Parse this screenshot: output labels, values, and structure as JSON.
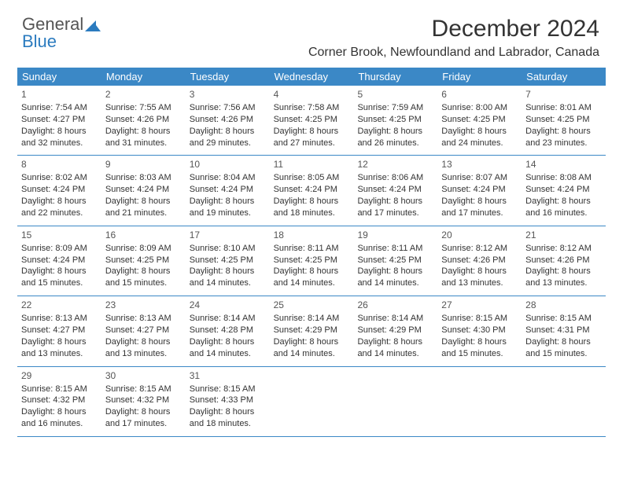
{
  "logo": {
    "part1": "General",
    "part2": "Blue"
  },
  "title": "December 2024",
  "subtitle": "Corner Brook, Newfoundland and Labrador, Canada",
  "colors": {
    "header_bg": "#3b88c6",
    "header_text": "#ffffff",
    "row_border": "#3b88c6",
    "logo_blue": "#2b7bbf",
    "text": "#333333",
    "bg": "#ffffff"
  },
  "day_headers": [
    "Sunday",
    "Monday",
    "Tuesday",
    "Wednesday",
    "Thursday",
    "Friday",
    "Saturday"
  ],
  "weeks": [
    [
      {
        "n": "1",
        "sr": "Sunrise: 7:54 AM",
        "ss": "Sunset: 4:27 PM",
        "d1": "Daylight: 8 hours",
        "d2": "and 32 minutes."
      },
      {
        "n": "2",
        "sr": "Sunrise: 7:55 AM",
        "ss": "Sunset: 4:26 PM",
        "d1": "Daylight: 8 hours",
        "d2": "and 31 minutes."
      },
      {
        "n": "3",
        "sr": "Sunrise: 7:56 AM",
        "ss": "Sunset: 4:26 PM",
        "d1": "Daylight: 8 hours",
        "d2": "and 29 minutes."
      },
      {
        "n": "4",
        "sr": "Sunrise: 7:58 AM",
        "ss": "Sunset: 4:25 PM",
        "d1": "Daylight: 8 hours",
        "d2": "and 27 minutes."
      },
      {
        "n": "5",
        "sr": "Sunrise: 7:59 AM",
        "ss": "Sunset: 4:25 PM",
        "d1": "Daylight: 8 hours",
        "d2": "and 26 minutes."
      },
      {
        "n": "6",
        "sr": "Sunrise: 8:00 AM",
        "ss": "Sunset: 4:25 PM",
        "d1": "Daylight: 8 hours",
        "d2": "and 24 minutes."
      },
      {
        "n": "7",
        "sr": "Sunrise: 8:01 AM",
        "ss": "Sunset: 4:25 PM",
        "d1": "Daylight: 8 hours",
        "d2": "and 23 minutes."
      }
    ],
    [
      {
        "n": "8",
        "sr": "Sunrise: 8:02 AM",
        "ss": "Sunset: 4:24 PM",
        "d1": "Daylight: 8 hours",
        "d2": "and 22 minutes."
      },
      {
        "n": "9",
        "sr": "Sunrise: 8:03 AM",
        "ss": "Sunset: 4:24 PM",
        "d1": "Daylight: 8 hours",
        "d2": "and 21 minutes."
      },
      {
        "n": "10",
        "sr": "Sunrise: 8:04 AM",
        "ss": "Sunset: 4:24 PM",
        "d1": "Daylight: 8 hours",
        "d2": "and 19 minutes."
      },
      {
        "n": "11",
        "sr": "Sunrise: 8:05 AM",
        "ss": "Sunset: 4:24 PM",
        "d1": "Daylight: 8 hours",
        "d2": "and 18 minutes."
      },
      {
        "n": "12",
        "sr": "Sunrise: 8:06 AM",
        "ss": "Sunset: 4:24 PM",
        "d1": "Daylight: 8 hours",
        "d2": "and 17 minutes."
      },
      {
        "n": "13",
        "sr": "Sunrise: 8:07 AM",
        "ss": "Sunset: 4:24 PM",
        "d1": "Daylight: 8 hours",
        "d2": "and 17 minutes."
      },
      {
        "n": "14",
        "sr": "Sunrise: 8:08 AM",
        "ss": "Sunset: 4:24 PM",
        "d1": "Daylight: 8 hours",
        "d2": "and 16 minutes."
      }
    ],
    [
      {
        "n": "15",
        "sr": "Sunrise: 8:09 AM",
        "ss": "Sunset: 4:24 PM",
        "d1": "Daylight: 8 hours",
        "d2": "and 15 minutes."
      },
      {
        "n": "16",
        "sr": "Sunrise: 8:09 AM",
        "ss": "Sunset: 4:25 PM",
        "d1": "Daylight: 8 hours",
        "d2": "and 15 minutes."
      },
      {
        "n": "17",
        "sr": "Sunrise: 8:10 AM",
        "ss": "Sunset: 4:25 PM",
        "d1": "Daylight: 8 hours",
        "d2": "and 14 minutes."
      },
      {
        "n": "18",
        "sr": "Sunrise: 8:11 AM",
        "ss": "Sunset: 4:25 PM",
        "d1": "Daylight: 8 hours",
        "d2": "and 14 minutes."
      },
      {
        "n": "19",
        "sr": "Sunrise: 8:11 AM",
        "ss": "Sunset: 4:25 PM",
        "d1": "Daylight: 8 hours",
        "d2": "and 14 minutes."
      },
      {
        "n": "20",
        "sr": "Sunrise: 8:12 AM",
        "ss": "Sunset: 4:26 PM",
        "d1": "Daylight: 8 hours",
        "d2": "and 13 minutes."
      },
      {
        "n": "21",
        "sr": "Sunrise: 8:12 AM",
        "ss": "Sunset: 4:26 PM",
        "d1": "Daylight: 8 hours",
        "d2": "and 13 minutes."
      }
    ],
    [
      {
        "n": "22",
        "sr": "Sunrise: 8:13 AM",
        "ss": "Sunset: 4:27 PM",
        "d1": "Daylight: 8 hours",
        "d2": "and 13 minutes."
      },
      {
        "n": "23",
        "sr": "Sunrise: 8:13 AM",
        "ss": "Sunset: 4:27 PM",
        "d1": "Daylight: 8 hours",
        "d2": "and 13 minutes."
      },
      {
        "n": "24",
        "sr": "Sunrise: 8:14 AM",
        "ss": "Sunset: 4:28 PM",
        "d1": "Daylight: 8 hours",
        "d2": "and 14 minutes."
      },
      {
        "n": "25",
        "sr": "Sunrise: 8:14 AM",
        "ss": "Sunset: 4:29 PM",
        "d1": "Daylight: 8 hours",
        "d2": "and 14 minutes."
      },
      {
        "n": "26",
        "sr": "Sunrise: 8:14 AM",
        "ss": "Sunset: 4:29 PM",
        "d1": "Daylight: 8 hours",
        "d2": "and 14 minutes."
      },
      {
        "n": "27",
        "sr": "Sunrise: 8:15 AM",
        "ss": "Sunset: 4:30 PM",
        "d1": "Daylight: 8 hours",
        "d2": "and 15 minutes."
      },
      {
        "n": "28",
        "sr": "Sunrise: 8:15 AM",
        "ss": "Sunset: 4:31 PM",
        "d1": "Daylight: 8 hours",
        "d2": "and 15 minutes."
      }
    ],
    [
      {
        "n": "29",
        "sr": "Sunrise: 8:15 AM",
        "ss": "Sunset: 4:32 PM",
        "d1": "Daylight: 8 hours",
        "d2": "and 16 minutes."
      },
      {
        "n": "30",
        "sr": "Sunrise: 8:15 AM",
        "ss": "Sunset: 4:32 PM",
        "d1": "Daylight: 8 hours",
        "d2": "and 17 minutes."
      },
      {
        "n": "31",
        "sr": "Sunrise: 8:15 AM",
        "ss": "Sunset: 4:33 PM",
        "d1": "Daylight: 8 hours",
        "d2": "and 18 minutes."
      },
      null,
      null,
      null,
      null
    ]
  ]
}
